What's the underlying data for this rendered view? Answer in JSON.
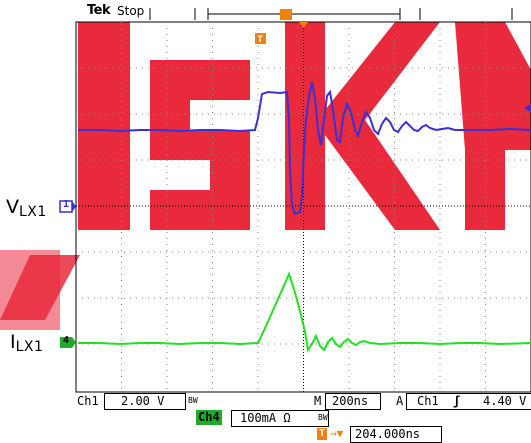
{
  "header": {
    "brand": "Tek",
    "run_state": "Stop",
    "trigger_marker": "T"
  },
  "channels": {
    "ch1_label_main": "V",
    "ch1_label_sub": "LX1",
    "ch1_marker": "1",
    "ch4_label_main": "I",
    "ch4_label_sub": "LX1",
    "ch4_marker": "4"
  },
  "readouts": {
    "ch1_name": "Ch1",
    "ch1_scale": "2.00 V",
    "ch1_bw": "BW",
    "ch4_name": "Ch4",
    "ch4_scale": "100mA Ω",
    "ch4_bw": "BW",
    "m_label": "M",
    "timebase": "200ns",
    "a_label": "A",
    "trig_source": "Ch1",
    "trig_slope_symbol": "ʃ",
    "trig_level": "4.40 V",
    "t_marker": "T",
    "t_arrow": "→▼",
    "delay": "204.000ns"
  },
  "colors": {
    "ch1_trace": "#3b2fd6",
    "ch4_trace": "#22e022",
    "watermark": "#e8172b",
    "trigger_orange": "#f08010",
    "grid": "#8a8a8a"
  }
}
